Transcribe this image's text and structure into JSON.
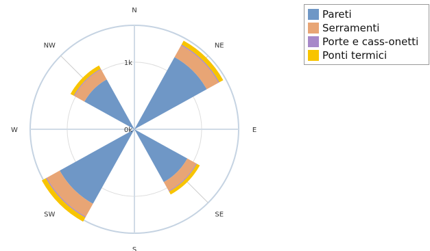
{
  "chart_data": {
    "type": "polar-stacked-bar",
    "title": "",
    "directions": [
      "N",
      "NE",
      "E",
      "SE",
      "S",
      "SW",
      "W",
      "NW"
    ],
    "radial_ticks": [
      {
        "value": 0,
        "label": "0k"
      },
      {
        "value": 1000,
        "label": "1k"
      }
    ],
    "rmax": 1550,
    "series": [
      {
        "name": "Pareti",
        "color": "#6f97c6",
        "values": [
          0,
          1230,
          0,
          900,
          0,
          1270,
          0,
          850
        ]
      },
      {
        "name": "Serramenti",
        "color": "#e8a575",
        "values": [
          0,
          200,
          0,
          150,
          0,
          220,
          0,
          170
        ]
      },
      {
        "name": "Porte e cass-onetti",
        "color": "#a788c9",
        "values": [
          0,
          15,
          0,
          12,
          0,
          15,
          0,
          12
        ]
      },
      {
        "name": "Ponti termici",
        "color": "#f8c400",
        "values": [
          0,
          65,
          0,
          50,
          0,
          70,
          0,
          55
        ]
      }
    ],
    "grid": true,
    "legend_position": "top-right"
  }
}
